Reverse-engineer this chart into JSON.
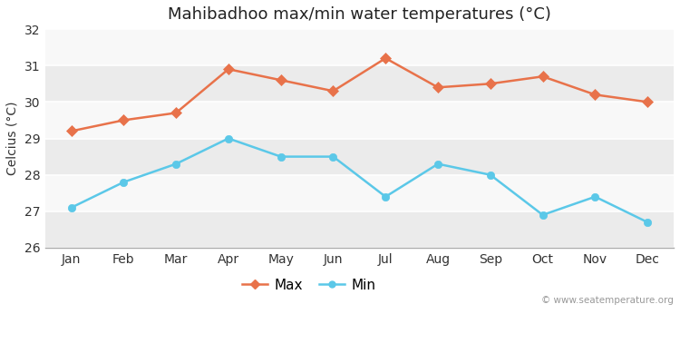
{
  "title": "Mahibadhoo max/min water temperatures (°C)",
  "ylabel": "Celcius (°C)",
  "months": [
    "Jan",
    "Feb",
    "Mar",
    "Apr",
    "May",
    "Jun",
    "Jul",
    "Aug",
    "Sep",
    "Oct",
    "Nov",
    "Dec"
  ],
  "max_temps": [
    29.2,
    29.5,
    29.7,
    30.9,
    30.6,
    30.3,
    31.2,
    30.4,
    30.5,
    30.7,
    30.2,
    30.0
  ],
  "min_temps": [
    27.1,
    27.8,
    28.3,
    29.0,
    28.5,
    28.5,
    27.4,
    28.3,
    28.0,
    26.9,
    27.4,
    26.7
  ],
  "max_color": "#e8724a",
  "min_color": "#5bc8e8",
  "ylim": [
    26,
    32
  ],
  "yticks": [
    26,
    27,
    28,
    29,
    30,
    31,
    32
  ],
  "bg_color": "#ffffff",
  "plot_bg_color": "#f2f2f2",
  "band_color_light": "#ebebeb",
  "band_color_dark": "#f8f8f8",
  "grid_color": "#ffffff",
  "watermark": "© www.seatemperature.org",
  "title_fontsize": 13,
  "label_fontsize": 10,
  "tick_fontsize": 10,
  "marker_max": "D",
  "marker_min": "o",
  "markersize": 6,
  "linewidth": 1.8
}
